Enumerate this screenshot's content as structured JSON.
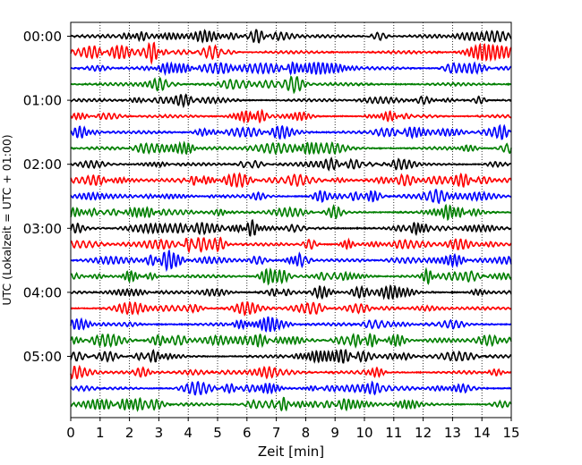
{
  "chart_data": {
    "type": "line",
    "subtype": "helicorder",
    "title": "",
    "xlabel": "Zeit  [min]",
    "ylabel": "UTC (Lokalzeit = UTC + 01:00)",
    "xlim": [
      0,
      15
    ],
    "x_ticks": [
      "0",
      "1",
      "2",
      "3",
      "4",
      "5",
      "6",
      "7",
      "8",
      "9",
      "10",
      "11",
      "12",
      "13",
      "14",
      "15"
    ],
    "y_ticks": [
      "00:00",
      "01:00",
      "02:00",
      "03:00",
      "04:00",
      "05:00"
    ],
    "traces_per_hour": 4,
    "minutes_per_trace": 15,
    "trace_count": 24,
    "trace_colors": [
      "#000000",
      "#ff0000",
      "#0000ff",
      "#007f00"
    ],
    "vertical_grid": "dotted",
    "legend": "none"
  }
}
